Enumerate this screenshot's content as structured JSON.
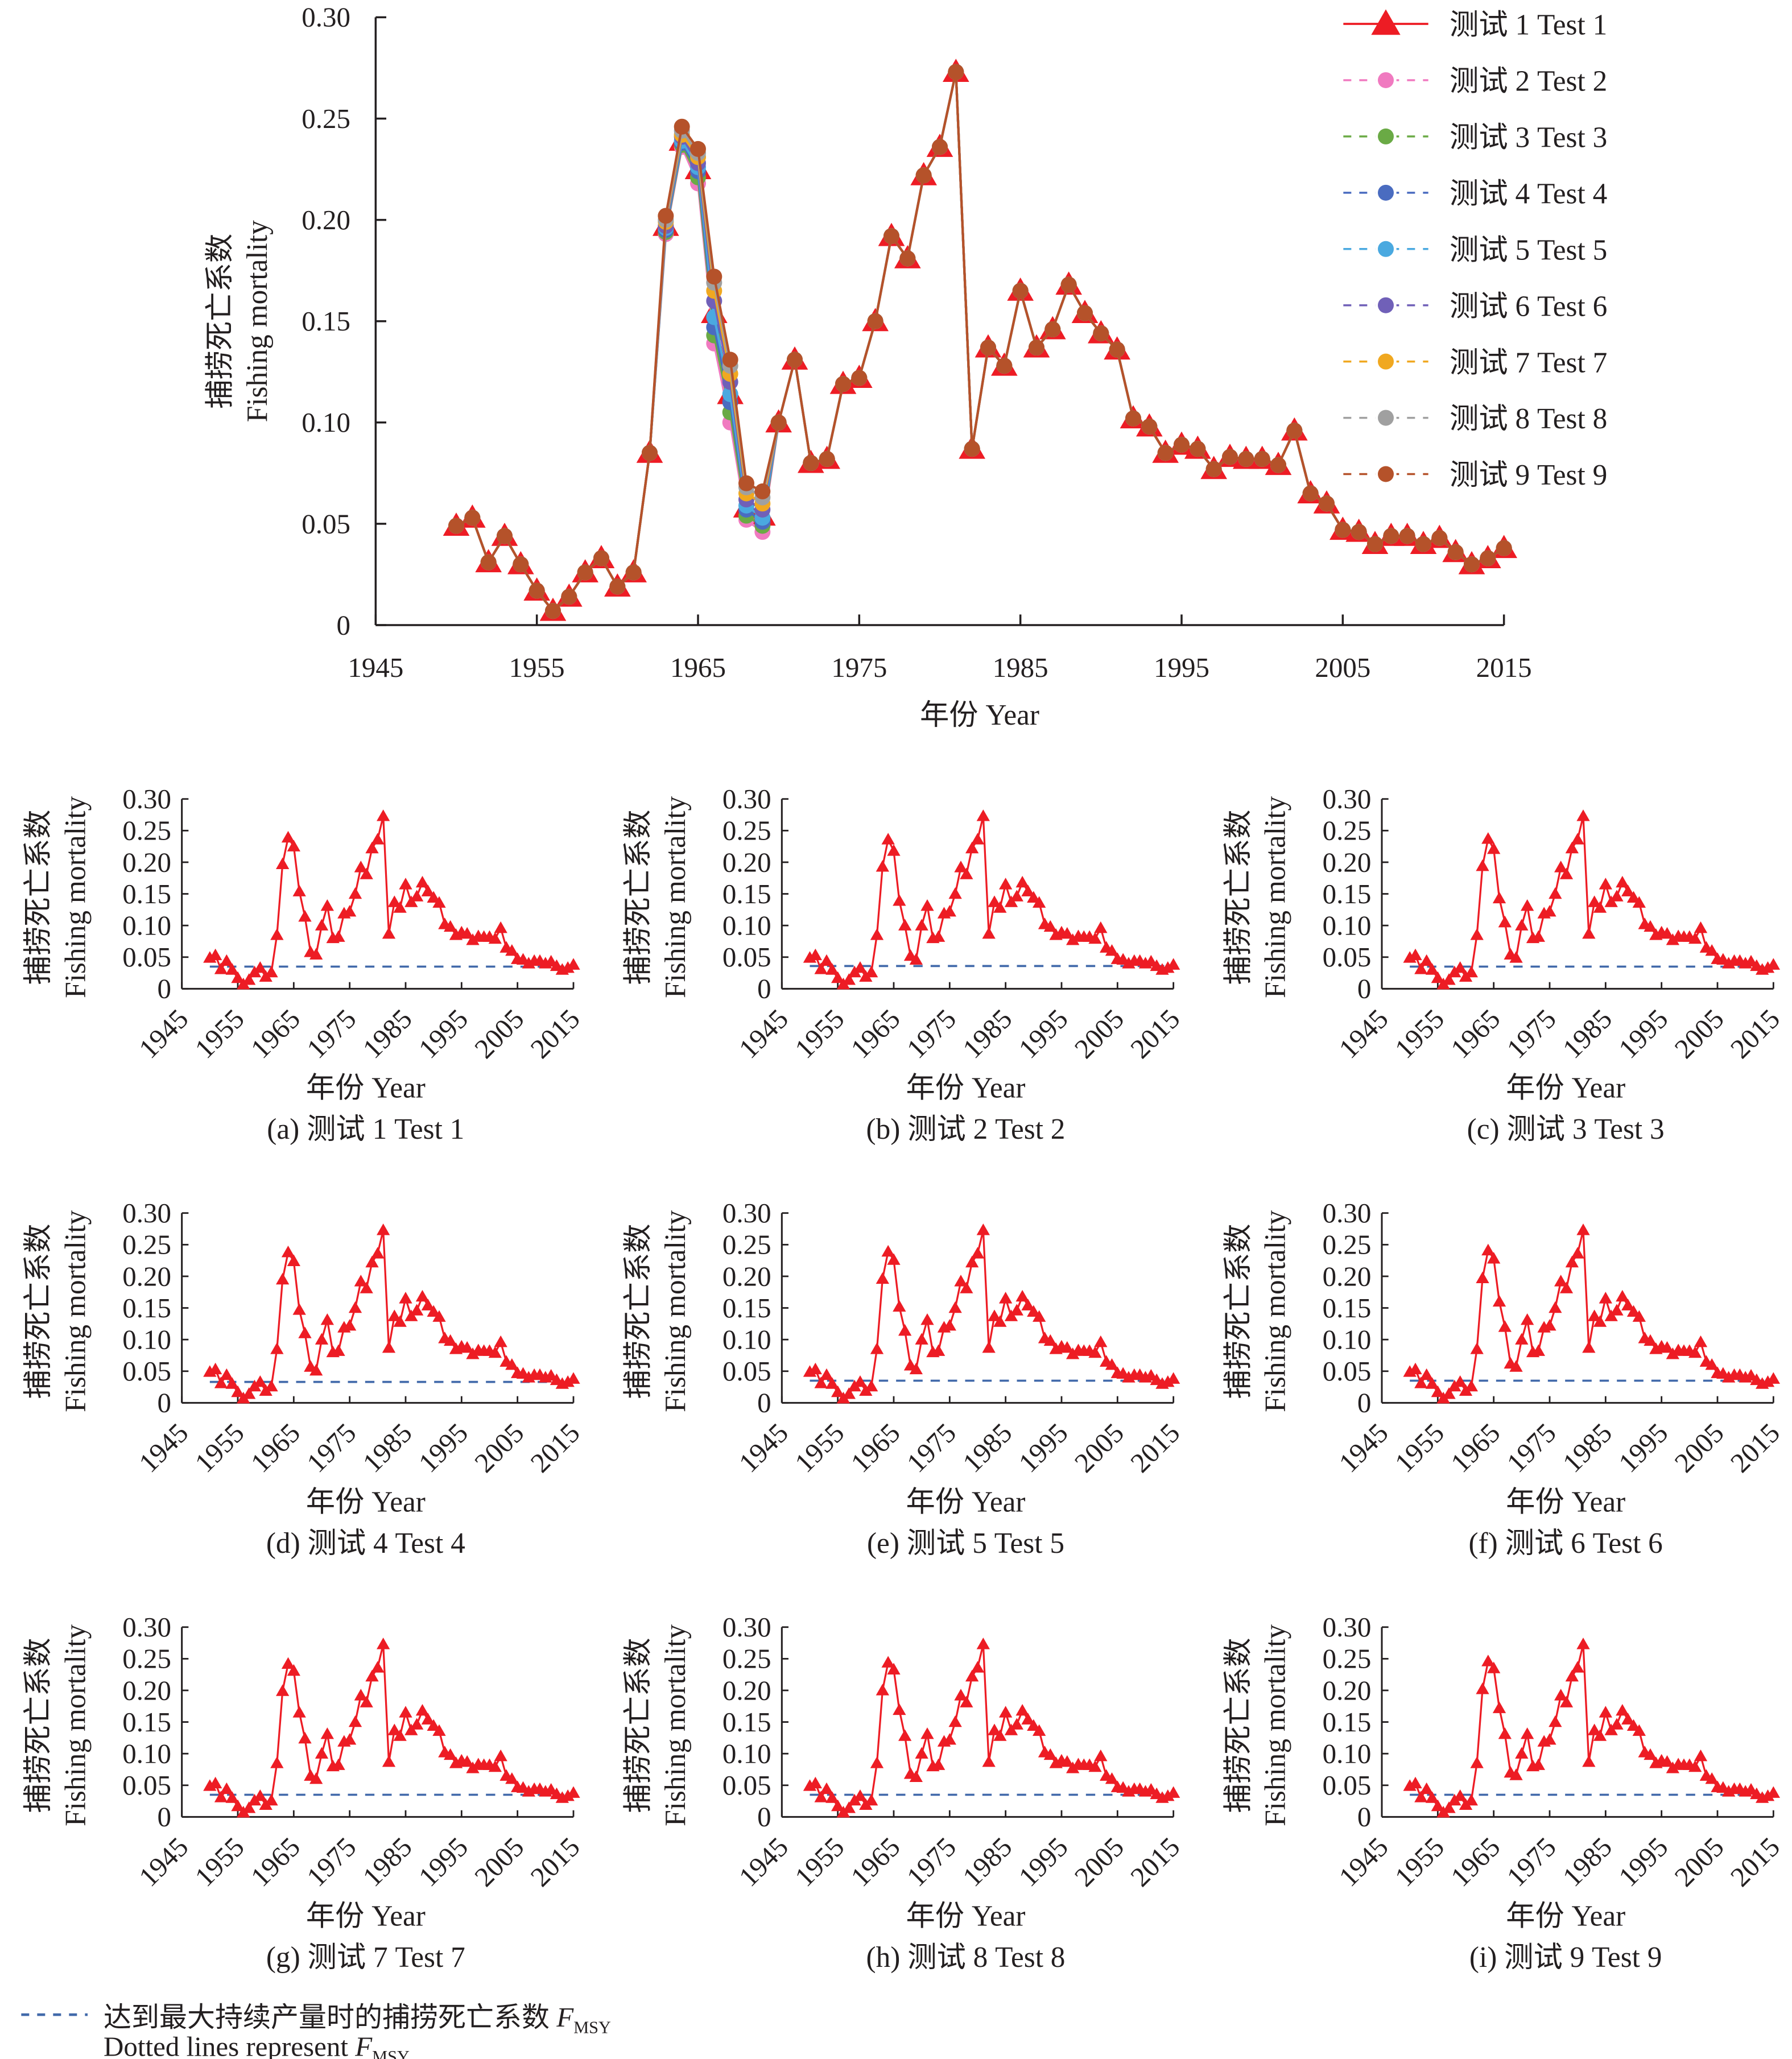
{
  "chart_data": [
    {
      "type": "line",
      "panel": "main",
      "xlabel": "年份 Year",
      "ylabel_cn": "捕捞死亡系数",
      "ylabel_en": "Fishing mortality",
      "xlim": [
        1945,
        2015
      ],
      "ylim": [
        0,
        0.3
      ],
      "xticks": [
        "1945",
        "1955",
        "1965",
        "1975",
        "1985",
        "1995",
        "2005",
        "2015"
      ],
      "yticks": [
        "0",
        "0.05",
        "0.10",
        "0.15",
        "0.20",
        "0.25",
        "0.30"
      ],
      "grid": false,
      "legend_position": "top-right",
      "x_start": 1950,
      "series": [
        {
          "name": "测试 1 Test 1",
          "color": "#ED1C24",
          "marker": "triangle",
          "line": "solid",
          "values": [
            0.049,
            0.053,
            0.031,
            0.044,
            0.03,
            0.017,
            0.007,
            0.014,
            0.026,
            0.033,
            0.019,
            0.026,
            0.085,
            0.197,
            0.239,
            0.225,
            0.154,
            0.114,
            0.058,
            0.054,
            0.1,
            0.131,
            0.08,
            0.082,
            0.119,
            0.122,
            0.15,
            0.192,
            0.181,
            0.222,
            0.236,
            0.273,
            0.087,
            0.137,
            0.128,
            0.165,
            0.137,
            0.146,
            0.168,
            0.154,
            0.144,
            0.136,
            0.102,
            0.098,
            0.085,
            0.089,
            0.087,
            0.077,
            0.083,
            0.082,
            0.082,
            0.079,
            0.096,
            0.065,
            0.06,
            0.047,
            0.046,
            0.04,
            0.044,
            0.044,
            0.04,
            0.043,
            0.036,
            0.03,
            0.033,
            0.038
          ]
        },
        {
          "name": "测试 2 Test 2",
          "color": "#F07AC0",
          "marker": "circle",
          "line": "dashed",
          "values": [
            0.049,
            0.053,
            0.031,
            0.044,
            0.03,
            0.017,
            0.007,
            0.014,
            0.026,
            0.033,
            0.019,
            0.026,
            0.085,
            0.193,
            0.236,
            0.218,
            0.139,
            0.1,
            0.052,
            0.046,
            0.1,
            0.131,
            0.08,
            0.082,
            0.119,
            0.122,
            0.15,
            0.192,
            0.181,
            0.222,
            0.236,
            0.273,
            0.087,
            0.137,
            0.128,
            0.165,
            0.137,
            0.146,
            0.168,
            0.154,
            0.144,
            0.136,
            0.102,
            0.098,
            0.085,
            0.089,
            0.087,
            0.077,
            0.083,
            0.082,
            0.082,
            0.079,
            0.096,
            0.065,
            0.06,
            0.047,
            0.046,
            0.04,
            0.044,
            0.044,
            0.04,
            0.043,
            0.036,
            0.03,
            0.033,
            0.038
          ]
        },
        {
          "name": "测试 3 Test 3",
          "color": "#6AAA45",
          "marker": "circle",
          "line": "dashed",
          "values": [
            0.049,
            0.053,
            0.031,
            0.044,
            0.03,
            0.017,
            0.007,
            0.014,
            0.026,
            0.033,
            0.019,
            0.026,
            0.085,
            0.194,
            0.237,
            0.221,
            0.143,
            0.105,
            0.054,
            0.049,
            0.1,
            0.131,
            0.08,
            0.082,
            0.119,
            0.122,
            0.15,
            0.192,
            0.181,
            0.222,
            0.236,
            0.273,
            0.087,
            0.137,
            0.128,
            0.165,
            0.137,
            0.146,
            0.168,
            0.154,
            0.144,
            0.136,
            0.102,
            0.098,
            0.085,
            0.089,
            0.087,
            0.077,
            0.083,
            0.082,
            0.082,
            0.079,
            0.096,
            0.065,
            0.06,
            0.047,
            0.046,
            0.04,
            0.044,
            0.044,
            0.04,
            0.043,
            0.036,
            0.03,
            0.033,
            0.038
          ]
        },
        {
          "name": "测试 4 Test 4",
          "color": "#4A6CC0",
          "marker": "circle",
          "line": "dashed",
          "values": [
            0.049,
            0.053,
            0.031,
            0.044,
            0.03,
            0.017,
            0.007,
            0.014,
            0.026,
            0.033,
            0.019,
            0.026,
            0.085,
            0.195,
            0.238,
            0.224,
            0.147,
            0.11,
            0.057,
            0.051,
            0.1,
            0.131,
            0.08,
            0.082,
            0.119,
            0.122,
            0.15,
            0.192,
            0.181,
            0.222,
            0.236,
            0.273,
            0.087,
            0.137,
            0.128,
            0.165,
            0.137,
            0.146,
            0.168,
            0.154,
            0.144,
            0.136,
            0.102,
            0.098,
            0.085,
            0.089,
            0.087,
            0.077,
            0.083,
            0.082,
            0.082,
            0.079,
            0.096,
            0.065,
            0.06,
            0.047,
            0.046,
            0.04,
            0.044,
            0.044,
            0.04,
            0.043,
            0.036,
            0.03,
            0.033,
            0.038
          ]
        },
        {
          "name": "测试 5 Test 5",
          "color": "#4AA9E0",
          "marker": "circle",
          "line": "dashed",
          "values": [
            0.049,
            0.053,
            0.031,
            0.044,
            0.03,
            0.017,
            0.007,
            0.014,
            0.026,
            0.033,
            0.019,
            0.026,
            0.085,
            0.196,
            0.239,
            0.226,
            0.152,
            0.114,
            0.059,
            0.053,
            0.1,
            0.131,
            0.08,
            0.082,
            0.119,
            0.122,
            0.15,
            0.192,
            0.181,
            0.222,
            0.236,
            0.273,
            0.087,
            0.137,
            0.128,
            0.165,
            0.137,
            0.146,
            0.168,
            0.154,
            0.144,
            0.136,
            0.102,
            0.098,
            0.085,
            0.089,
            0.087,
            0.077,
            0.083,
            0.082,
            0.082,
            0.079,
            0.096,
            0.065,
            0.06,
            0.047,
            0.046,
            0.04,
            0.044,
            0.044,
            0.04,
            0.043,
            0.036,
            0.03,
            0.033,
            0.038
          ]
        },
        {
          "name": "测试 6 Test 6",
          "color": "#7060B8",
          "marker": "circle",
          "line": "dashed",
          "values": [
            0.049,
            0.053,
            0.031,
            0.044,
            0.03,
            0.017,
            0.007,
            0.014,
            0.026,
            0.033,
            0.019,
            0.026,
            0.085,
            0.197,
            0.241,
            0.228,
            0.16,
            0.12,
            0.062,
            0.057,
            0.1,
            0.131,
            0.08,
            0.082,
            0.119,
            0.122,
            0.15,
            0.192,
            0.181,
            0.222,
            0.236,
            0.273,
            0.087,
            0.137,
            0.128,
            0.165,
            0.137,
            0.146,
            0.168,
            0.154,
            0.144,
            0.136,
            0.102,
            0.098,
            0.085,
            0.089,
            0.087,
            0.077,
            0.083,
            0.082,
            0.082,
            0.079,
            0.096,
            0.065,
            0.06,
            0.047,
            0.046,
            0.04,
            0.044,
            0.044,
            0.04,
            0.043,
            0.036,
            0.03,
            0.033,
            0.038
          ]
        },
        {
          "name": "测试 7 Test 7",
          "color": "#F0A820",
          "marker": "circle",
          "line": "dashed",
          "values": [
            0.049,
            0.053,
            0.031,
            0.044,
            0.03,
            0.017,
            0.007,
            0.014,
            0.026,
            0.033,
            0.019,
            0.026,
            0.085,
            0.199,
            0.242,
            0.231,
            0.165,
            0.124,
            0.065,
            0.06,
            0.1,
            0.131,
            0.08,
            0.082,
            0.119,
            0.122,
            0.15,
            0.192,
            0.181,
            0.222,
            0.236,
            0.273,
            0.087,
            0.137,
            0.128,
            0.165,
            0.137,
            0.146,
            0.168,
            0.154,
            0.144,
            0.136,
            0.102,
            0.098,
            0.085,
            0.089,
            0.087,
            0.077,
            0.083,
            0.082,
            0.082,
            0.079,
            0.096,
            0.065,
            0.06,
            0.047,
            0.046,
            0.04,
            0.044,
            0.044,
            0.04,
            0.043,
            0.036,
            0.03,
            0.033,
            0.038
          ]
        },
        {
          "name": "测试 8 Test 8",
          "color": "#A0A0A0",
          "marker": "circle",
          "line": "dashed",
          "values": [
            0.049,
            0.053,
            0.031,
            0.044,
            0.03,
            0.017,
            0.007,
            0.014,
            0.026,
            0.033,
            0.019,
            0.026,
            0.085,
            0.2,
            0.244,
            0.233,
            0.169,
            0.128,
            0.068,
            0.063,
            0.1,
            0.131,
            0.08,
            0.082,
            0.119,
            0.122,
            0.15,
            0.192,
            0.181,
            0.222,
            0.236,
            0.273,
            0.087,
            0.137,
            0.128,
            0.165,
            0.137,
            0.146,
            0.168,
            0.154,
            0.144,
            0.136,
            0.102,
            0.098,
            0.085,
            0.089,
            0.087,
            0.077,
            0.083,
            0.082,
            0.082,
            0.079,
            0.096,
            0.065,
            0.06,
            0.047,
            0.046,
            0.04,
            0.044,
            0.044,
            0.04,
            0.043,
            0.036,
            0.03,
            0.033,
            0.038
          ]
        },
        {
          "name": "测试 9 Test 9",
          "color": "#B5522A",
          "marker": "circle",
          "line": "dashed",
          "values": [
            0.049,
            0.053,
            0.031,
            0.044,
            0.03,
            0.017,
            0.007,
            0.014,
            0.026,
            0.033,
            0.019,
            0.026,
            0.085,
            0.202,
            0.246,
            0.235,
            0.172,
            0.131,
            0.07,
            0.066,
            0.1,
            0.131,
            0.08,
            0.082,
            0.119,
            0.122,
            0.15,
            0.192,
            0.181,
            0.222,
            0.236,
            0.273,
            0.087,
            0.137,
            0.128,
            0.165,
            0.137,
            0.146,
            0.168,
            0.154,
            0.144,
            0.136,
            0.102,
            0.098,
            0.085,
            0.089,
            0.087,
            0.077,
            0.083,
            0.082,
            0.082,
            0.079,
            0.096,
            0.065,
            0.06,
            0.047,
            0.046,
            0.04,
            0.044,
            0.044,
            0.04,
            0.043,
            0.036,
            0.03,
            0.033,
            0.038
          ]
        }
      ]
    },
    {
      "type": "line",
      "panel": "small-multiples",
      "xlabel": "年份 Year",
      "ylabel_cn": "捕捞死亡系数",
      "ylabel_en": "Fishing mortality",
      "xlim": [
        1945,
        2015
      ],
      "ylim": [
        0,
        0.3
      ],
      "xticks": [
        "1945",
        "1955",
        "1965",
        "1975",
        "1985",
        "1995",
        "2005",
        "2015"
      ],
      "yticks": [
        "0",
        "0.05",
        "0.10",
        "0.15",
        "0.20",
        "0.25",
        "0.30"
      ],
      "series_color": "#ED1C24",
      "fmsy_color": "#4169AA",
      "panels": [
        {
          "caption": "(a) 测试 1 Test 1",
          "series_index": 0,
          "fmsy": 0.035
        },
        {
          "caption": "(b) 测试 2 Test 2",
          "series_index": 1,
          "fmsy": 0.036
        },
        {
          "caption": "(c) 测试 3 Test 3",
          "series_index": 2,
          "fmsy": 0.035
        },
        {
          "caption": "(d) 测试 4 Test 4",
          "series_index": 3,
          "fmsy": 0.033
        },
        {
          "caption": "(e) 测试 5 Test 5",
          "series_index": 4,
          "fmsy": 0.035
        },
        {
          "caption": "(f) 测试 6 Test 6",
          "series_index": 5,
          "fmsy": 0.035
        },
        {
          "caption": "(g) 测试 7 Test 7",
          "series_index": 6,
          "fmsy": 0.035
        },
        {
          "caption": "(h) 测试 8 Test 8",
          "series_index": 7,
          "fmsy": 0.035
        },
        {
          "caption": "(i) 测试 9 Test 9",
          "series_index": 8,
          "fmsy": 0.035
        }
      ]
    }
  ],
  "footnote": {
    "line1": "达到最大持续产量时的捕捞死亡系数 ",
    "line2": "Dotted lines represent ",
    "symbol": "F",
    "subscript": "MSY"
  }
}
